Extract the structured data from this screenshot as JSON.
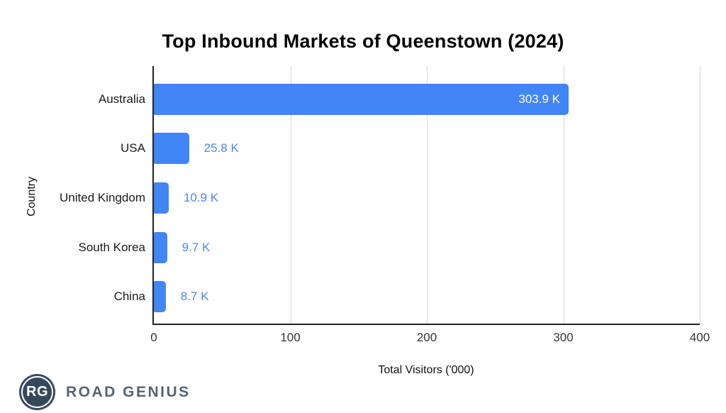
{
  "chart_data": {
    "type": "bar",
    "orientation": "horizontal",
    "title": "Top Inbound Markets of Queenstown (2024)",
    "xlabel": "Total Visitors ('000)",
    "ylabel": "Country",
    "categories": [
      "Australia",
      "USA",
      "United Kingdom",
      "South Korea",
      "China"
    ],
    "values": [
      303.9,
      25.8,
      10.9,
      9.7,
      8.7
    ],
    "value_labels": [
      "303.9 K",
      "25.8 K",
      "10.9 K",
      "9.7 K",
      "8.7 K"
    ],
    "xlim": [
      0,
      400
    ],
    "x_ticks": [
      0,
      100,
      200,
      300,
      400
    ],
    "grid": "vertical",
    "legend": "none",
    "bar_color": "#4285F4",
    "label_color_inside": "#FFFFFF",
    "label_color_outside": "#4E87EF",
    "gridline_color": "#D9D9D9",
    "axis_color": "#212121"
  },
  "logo": {
    "badge_text": "RG",
    "name": "ROAD GENIUS",
    "badge_color": "#36495C",
    "text_color": "#54646F"
  }
}
